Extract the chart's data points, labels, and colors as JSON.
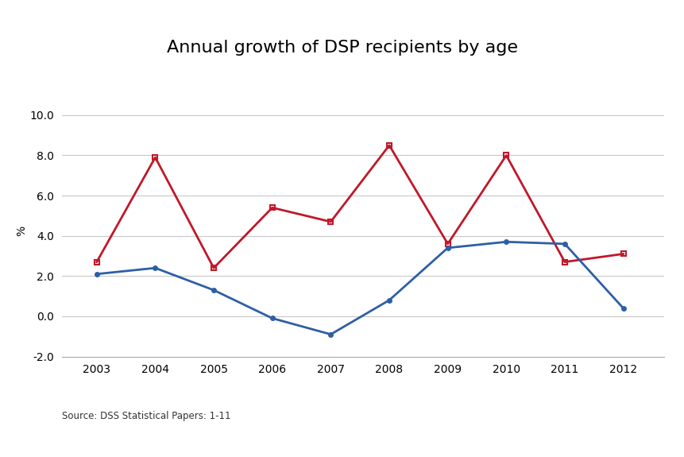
{
  "title": "Annual growth of DSP recipients by age",
  "xlabel": "",
  "ylabel": "%",
  "source": "Source: DSS Statistical Papers: 1-11",
  "years": [
    2003,
    2004,
    2005,
    2006,
    2007,
    2008,
    2009,
    2010,
    2011,
    2012
  ],
  "blue_line": [
    2.1,
    2.4,
    1.3,
    -0.1,
    -0.9,
    0.8,
    3.4,
    3.7,
    3.6,
    0.4
  ],
  "red_line": [
    2.7,
    7.9,
    2.4,
    5.4,
    4.7,
    8.5,
    3.6,
    8.0,
    2.7,
    3.1
  ],
  "blue_color": "#2E5FA3",
  "red_color": "#C0182A",
  "ylim": [
    -2.0,
    10.5
  ],
  "yticks": [
    -2.0,
    0.0,
    2.0,
    4.0,
    6.0,
    8.0,
    10.0
  ],
  "background_color": "#ffffff",
  "grid_color": "#c8c8c8",
  "title_fontsize": 16,
  "label_fontsize": 10,
  "tick_fontsize": 10,
  "source_fontsize": 8.5
}
